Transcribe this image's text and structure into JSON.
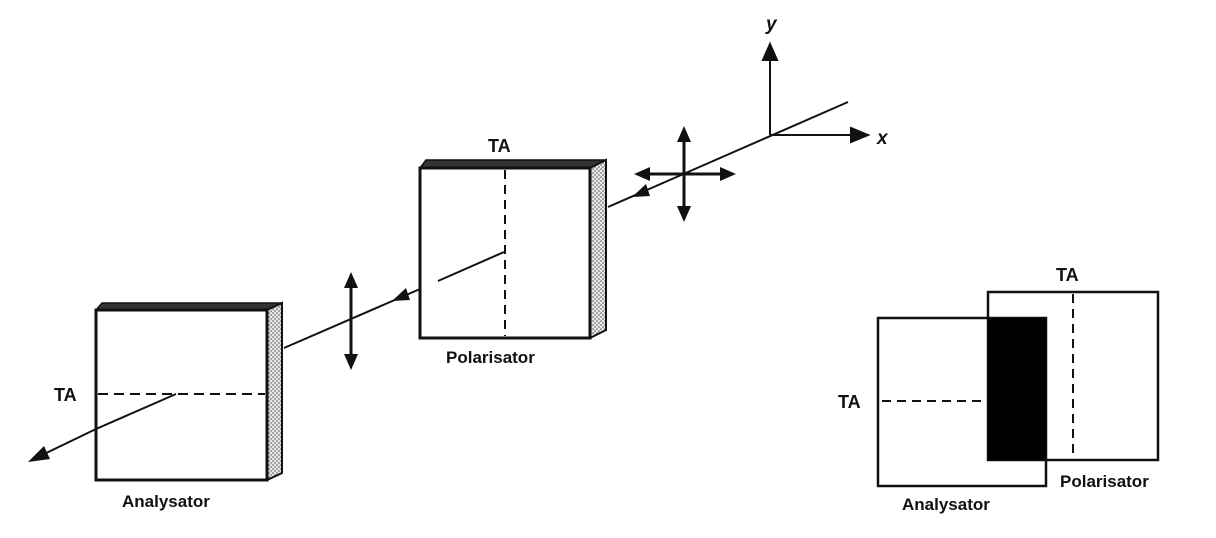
{
  "axes": {
    "x_label": "x",
    "y_label": "y"
  },
  "main_view": {
    "polarizer": {
      "top_label": "TA",
      "caption": "Polarisator"
    },
    "analyzer": {
      "side_label": "TA",
      "caption": "Analysator"
    }
  },
  "overlap_view": {
    "polarizer": {
      "top_label": "TA",
      "caption": "Polarisator"
    },
    "analyzer": {
      "side_label": "TA",
      "caption": "Analysator"
    }
  },
  "colors": {
    "ink": "#111111",
    "fill_dark": "#000000",
    "stipple": "#9a9a9a"
  }
}
